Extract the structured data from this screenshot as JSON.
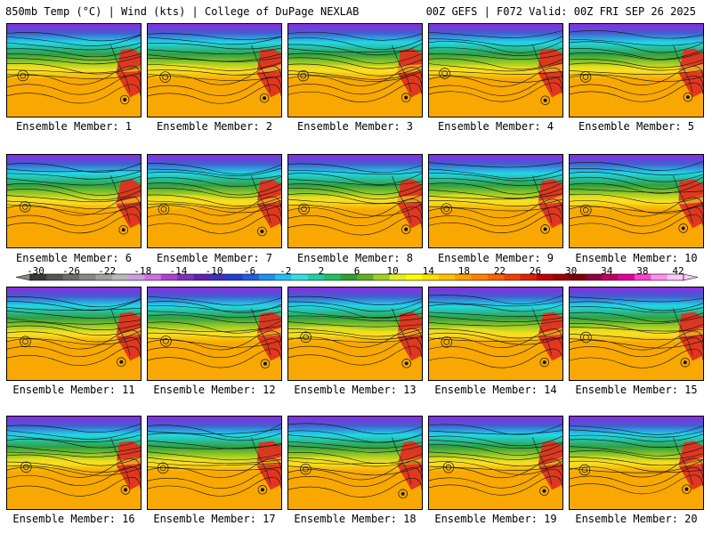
{
  "header": {
    "left": "850mb Temp (°C) | Wind (kts) | College of DuPage NEXLAB",
    "right": "00Z GEFS | F072 Valid: 00Z FRI SEP 26 2025"
  },
  "members": [
    "Ensemble Member: 1",
    "Ensemble Member: 2",
    "Ensemble Member: 3",
    "Ensemble Member: 4",
    "Ensemble Member: 5",
    "Ensemble Member: 6",
    "Ensemble Member: 7",
    "Ensemble Member: 8",
    "Ensemble Member: 9",
    "Ensemble Member: 10",
    "Ensemble Member: 11",
    "Ensemble Member: 12",
    "Ensemble Member: 13",
    "Ensemble Member: 14",
    "Ensemble Member: 15",
    "Ensemble Member: 16",
    "Ensemble Member: 17",
    "Ensemble Member: 18",
    "Ensemble Member: 19",
    "Ensemble Member: 20"
  ],
  "colorbar": {
    "ticks": [
      "-30",
      "-26",
      "-22",
      "-18",
      "-14",
      "-10",
      "-6",
      "-2",
      "2",
      "6",
      "10",
      "14",
      "18",
      "22",
      "26",
      "30",
      "34",
      "38",
      "42"
    ],
    "colors": [
      "#3a3a3a",
      "#555555",
      "#6e6e6e",
      "#888888",
      "#a0a0a0",
      "#b9b9b9",
      "#c8a0e0",
      "#d070e0",
      "#b040d0",
      "#8030c0",
      "#6020b0",
      "#4030c0",
      "#2040d0",
      "#2060e0",
      "#2090f0",
      "#20c0f0",
      "#30e0e0",
      "#20d0a0",
      "#20c060",
      "#30a030",
      "#60b020",
      "#a0d020",
      "#e0f020",
      "#ffff00",
      "#ffe000",
      "#ffc000",
      "#ffa000",
      "#ff8000",
      "#ff6000",
      "#f04000",
      "#e02000",
      "#c00000",
      "#a00000",
      "#800000",
      "#900040",
      "#c00060",
      "#e000a0",
      "#ff40d0",
      "#ff90f0",
      "#ffc8ff"
    ]
  },
  "colors": {
    "cold": "#8a2be2",
    "cyan": "#20d8e8",
    "green": "#30a040",
    "yellow": "#f8e020",
    "orange": "#f8a800",
    "red": "#e03020"
  }
}
